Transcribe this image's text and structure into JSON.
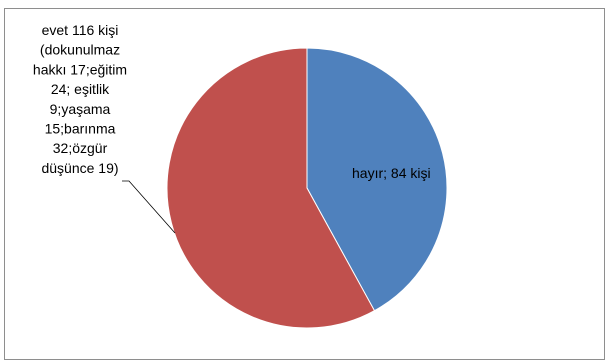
{
  "chart_data": {
    "type": "pie",
    "slices": [
      {
        "label": "hayır; 84 kişi",
        "value": 84,
        "color": "#4f81bd"
      },
      {
        "label_lines": [
          "evet  116 kişi",
          "(dokunulmaz",
          "hakkı 17;eğitim",
          "24; eşitlik",
          "9;yaşama",
          "15;barınma",
          "32;özgür",
          "düşünce 19)"
        ],
        "value": 116,
        "color": "#c0504d"
      }
    ],
    "legend": "none"
  }
}
